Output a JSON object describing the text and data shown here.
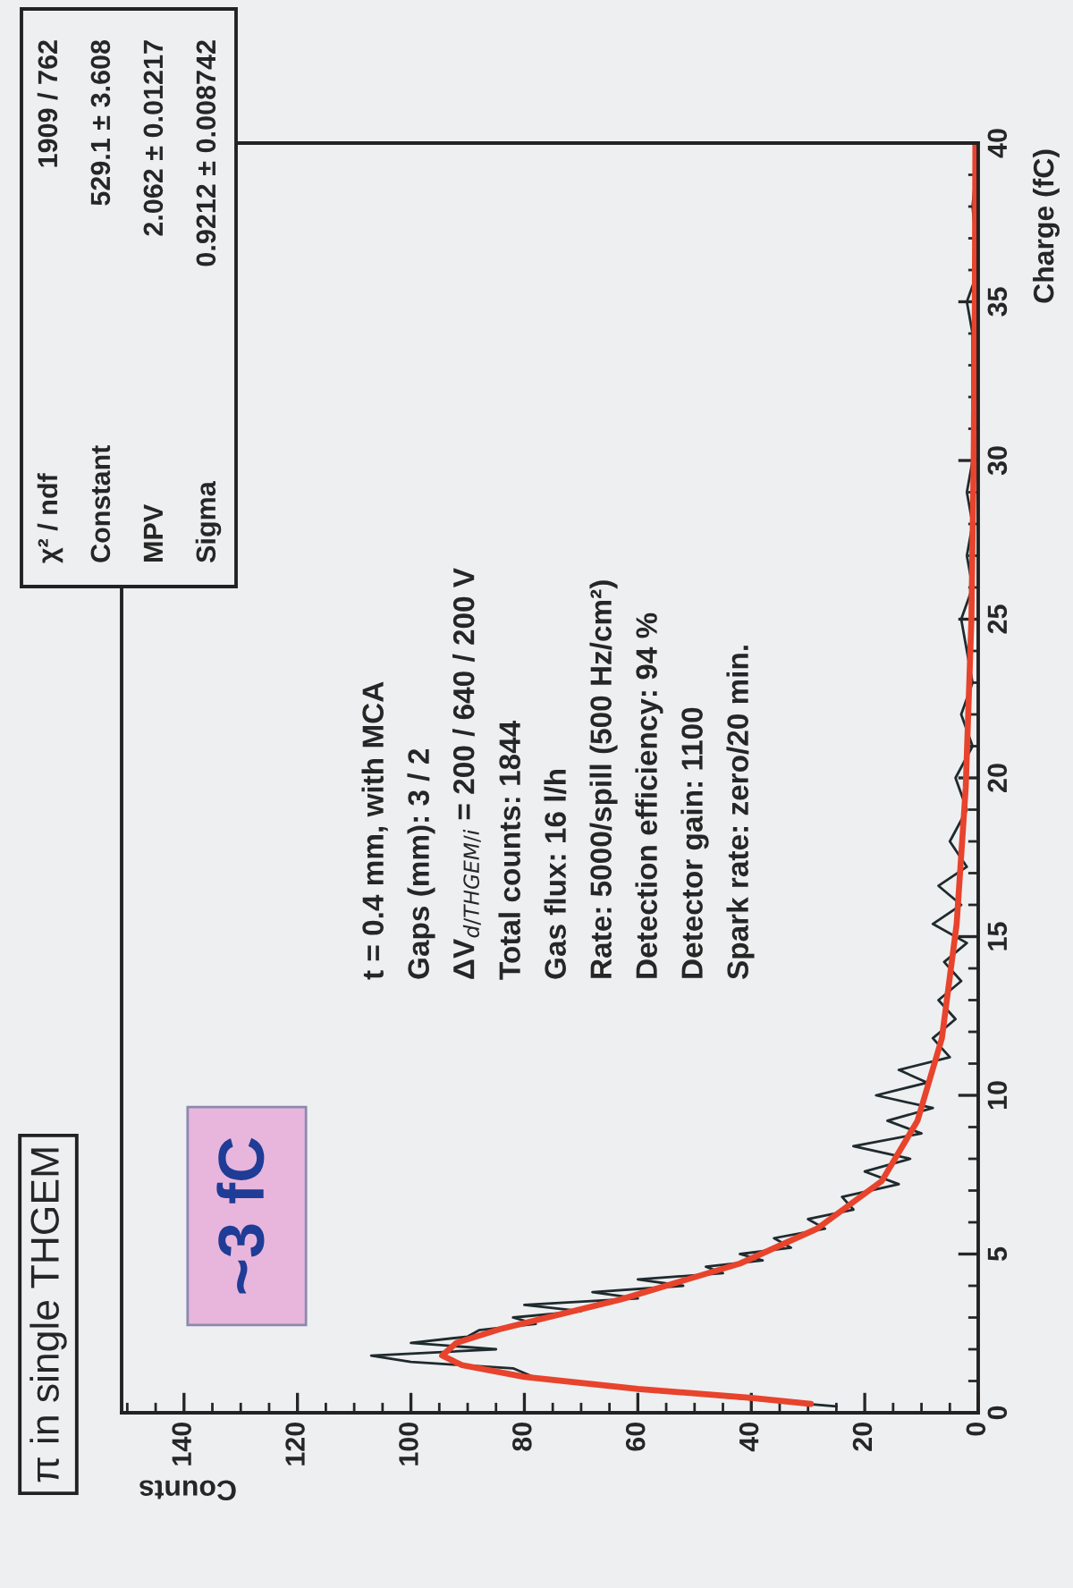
{
  "chart_data": {
    "type": "line",
    "title": "π in single THGEM",
    "xlabel": "Counts",
    "ylabel": "Charge (fC)",
    "xlim": [
      151,
      0
    ],
    "xticks": [
      140,
      120,
      100,
      80,
      60,
      40,
      20,
      0
    ],
    "ylim": [
      0,
      40
    ],
    "yticks": [
      0,
      5,
      10,
      15,
      20,
      25,
      30,
      35,
      40
    ],
    "grid": false,
    "legend": false,
    "series": [
      {
        "color": "#1e2a2e",
        "values": [
          0.2,
          0.5,
          0.8,
          1.1,
          1.4,
          1.6,
          1.8,
          2.0,
          2.2,
          2.4,
          2.6,
          2.8,
          3.0,
          3.2,
          3.4,
          3.6,
          3.8,
          4.0,
          4.2,
          4.4,
          4.6,
          4.8,
          5.0,
          5.2,
          5.5,
          5.8,
          6.1,
          6.4,
          6.8,
          7.2,
          7.6,
          8.0,
          8.4,
          8.8,
          9.2,
          9.6,
          10.0,
          10.4,
          10.8,
          11.2,
          11.8,
          12.4,
          13.0,
          13.6,
          14.2,
          14.8,
          15.4,
          16.0,
          16.6,
          17.2,
          18.0,
          19.0,
          20.0,
          21,
          22,
          23,
          24,
          25,
          26,
          27,
          28,
          29,
          30,
          32,
          34,
          35,
          36,
          38,
          40
        ],
        "x": [
          25,
          45,
          62,
          78,
          82,
          100,
          107,
          85,
          100,
          90,
          88,
          78,
          82,
          70,
          80,
          60,
          68,
          52,
          60,
          45,
          48,
          38,
          42,
          33,
          36,
          27,
          30,
          22,
          24,
          14,
          20,
          12,
          22,
          10,
          16,
          8,
          18,
          9,
          14,
          5,
          8,
          4,
          7,
          3,
          6,
          2,
          8,
          3,
          7,
          2,
          5,
          2,
          4,
          1,
          3,
          1,
          2,
          3,
          1,
          2,
          1,
          2,
          1,
          1,
          1,
          2,
          0,
          1,
          0
        ]
      },
      {
        "color": "#e8432c",
        "values": [
          0.28,
          0.47,
          0.75,
          1.13,
          1.5,
          1.8,
          2.2,
          2.65,
          3.57,
          4.7,
          5.8,
          7.3,
          9.2,
          11.8,
          15.4,
          19.7,
          25,
          30,
          35,
          40
        ],
        "x": [
          29.5,
          40,
          60,
          80,
          91,
          94.5,
          92,
          84,
          63,
          42,
          28.4,
          17,
          10.7,
          6.4,
          3.8,
          2.2,
          1.2,
          0.8,
          0.6,
          0.5
        ]
      }
    ],
    "annotations": [
      "χ² / ndf",
      "1909 / 762",
      "Constant",
      "529.1 ± 3.608",
      "MPV",
      "2.062 ± 0.01217",
      "Sigma",
      "0.9212 ± 0.008742",
      "t = 0.4 mm, with MCA",
      "Gaps (mm): 3 / 2",
      "ΔV$_{d/THGEM/i}$ = 200 / 640 / 200 V",
      "Total counts: 1844",
      "Gas flux: 16 l/h",
      "Rate: 5000/spill (500 Hz/cm²)",
      "Detection efficiency: 94 %",
      "Detector gain: 1100",
      "Spark rate: zero/20 min.",
      "~3 fC"
    ]
  }
}
